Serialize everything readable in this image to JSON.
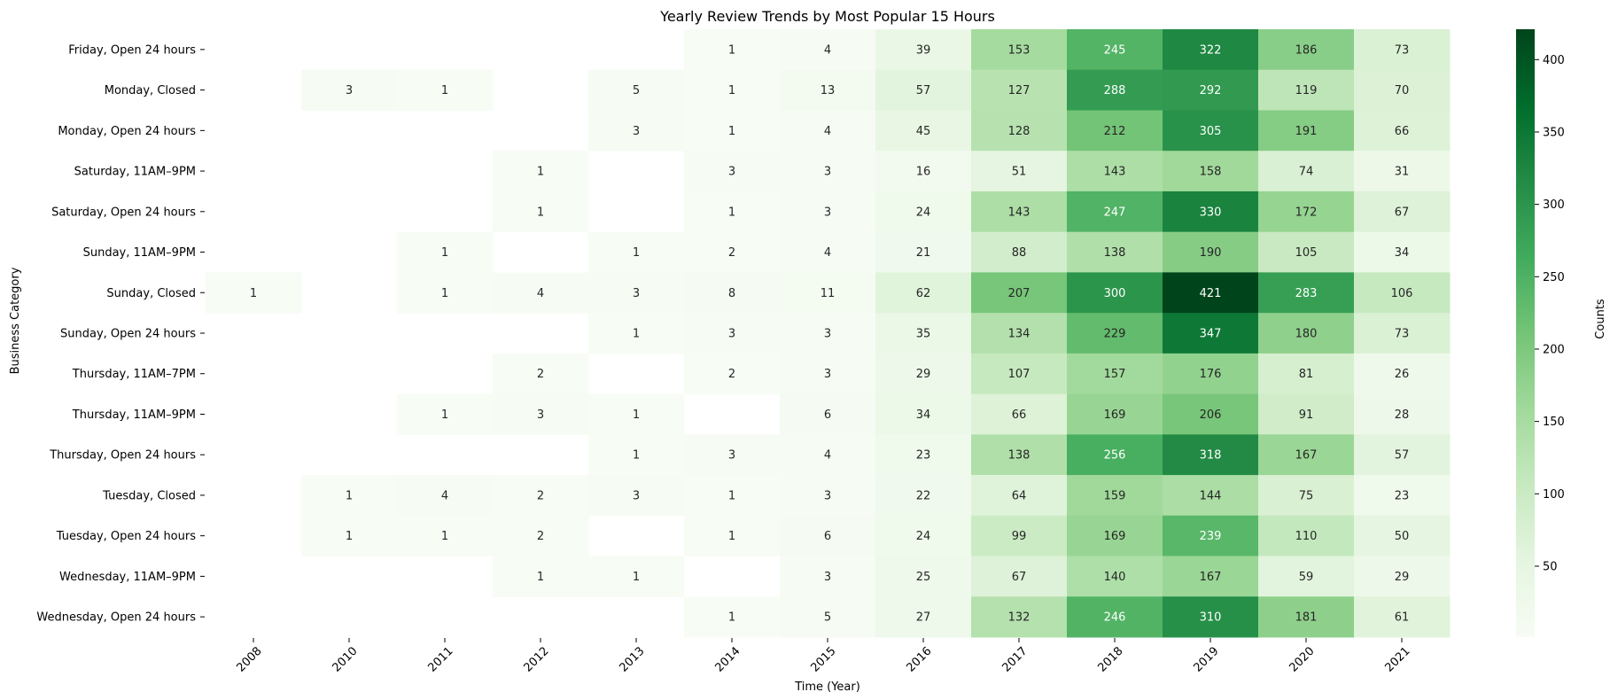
{
  "chart_data": {
    "type": "heatmap",
    "title": "Yearly Review Trends by Most Popular 15 Hours",
    "xlabel": "Time (Year)",
    "ylabel": "Business Category",
    "colorbar_label": "Counts",
    "colorbar_ticks": [
      50,
      100,
      150,
      200,
      250,
      300,
      350,
      400
    ],
    "color_range": [
      1,
      421
    ],
    "colormap": "Greens",
    "colors": {
      "low": "#f7fcf5",
      "high": "#00441b"
    },
    "years": [
      "2008",
      "2010",
      "2011",
      "2012",
      "2013",
      "2014",
      "2015",
      "2016",
      "2017",
      "2018",
      "2019",
      "2020",
      "2021"
    ],
    "rows": [
      "Friday, Open 24 hours",
      "Monday, Closed",
      "Monday, Open 24 hours",
      "Saturday, 11AM–9PM",
      "Saturday, Open 24 hours",
      "Sunday, 11AM–9PM",
      "Sunday, Closed",
      "Sunday, Open 24 hours",
      "Thursday, 11AM–7PM",
      "Thursday, 11AM–9PM",
      "Thursday, Open 24 hours",
      "Tuesday, Closed",
      "Tuesday, Open 24 hours",
      "Wednesday, 11AM–9PM",
      "Wednesday, Open 24 hours"
    ],
    "values": [
      [
        null,
        null,
        null,
        null,
        null,
        1,
        4,
        39,
        153,
        245,
        322,
        186,
        73
      ],
      [
        null,
        3,
        1,
        null,
        5,
        1,
        13,
        57,
        127,
        288,
        292,
        119,
        70
      ],
      [
        null,
        null,
        null,
        null,
        3,
        1,
        4,
        45,
        128,
        212,
        305,
        191,
        66
      ],
      [
        null,
        null,
        null,
        1,
        null,
        3,
        3,
        16,
        51,
        143,
        158,
        74,
        31
      ],
      [
        null,
        null,
        null,
        1,
        null,
        1,
        3,
        24,
        143,
        247,
        330,
        172,
        67
      ],
      [
        null,
        null,
        1,
        null,
        1,
        2,
        4,
        21,
        88,
        138,
        190,
        105,
        34
      ],
      [
        1,
        null,
        1,
        4,
        3,
        8,
        11,
        62,
        207,
        300,
        421,
        283,
        106
      ],
      [
        null,
        null,
        null,
        null,
        1,
        3,
        3,
        35,
        134,
        229,
        347,
        180,
        73
      ],
      [
        null,
        null,
        null,
        2,
        null,
        2,
        3,
        29,
        107,
        157,
        176,
        81,
        26
      ],
      [
        null,
        null,
        1,
        3,
        1,
        null,
        6,
        34,
        66,
        169,
        206,
        91,
        28
      ],
      [
        null,
        null,
        null,
        null,
        1,
        3,
        4,
        23,
        138,
        256,
        318,
        167,
        57
      ],
      [
        null,
        1,
        4,
        2,
        3,
        1,
        3,
        22,
        64,
        159,
        144,
        75,
        23
      ],
      [
        null,
        1,
        1,
        2,
        null,
        1,
        6,
        24,
        99,
        169,
        239,
        110,
        50
      ],
      [
        null,
        null,
        null,
        1,
        1,
        null,
        3,
        25,
        67,
        140,
        167,
        59,
        29
      ],
      [
        null,
        null,
        null,
        null,
        null,
        1,
        5,
        27,
        132,
        246,
        310,
        181,
        61
      ]
    ]
  }
}
